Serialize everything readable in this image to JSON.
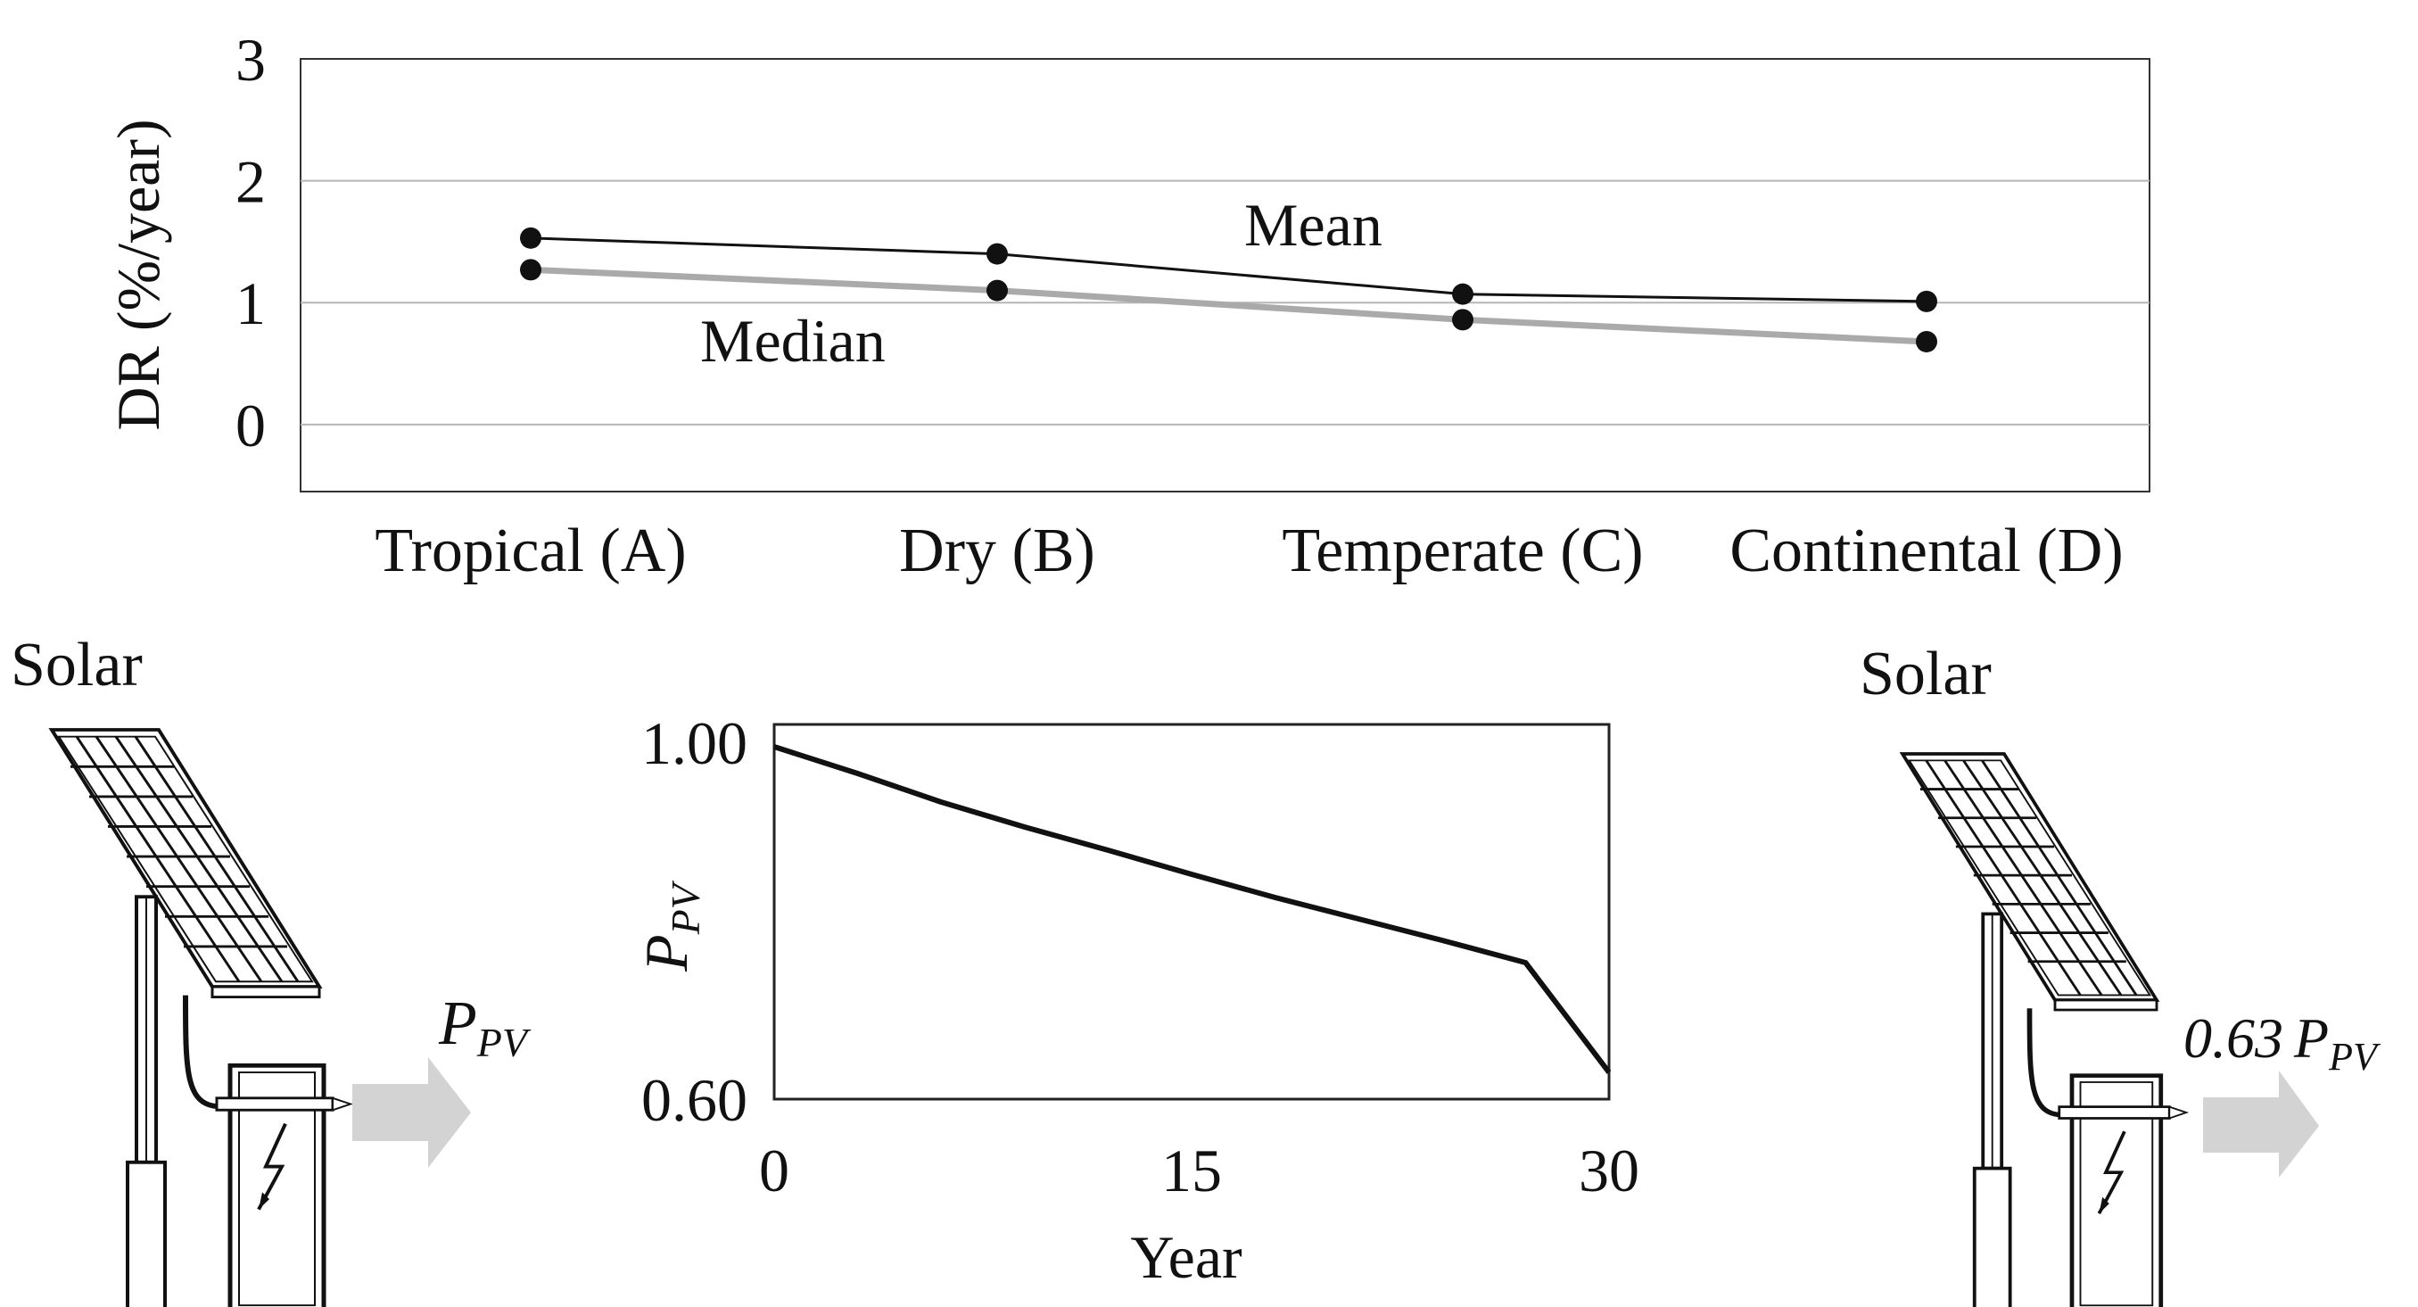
{
  "chart_data": [
    {
      "type": "line",
      "title": "",
      "xlabel": "",
      "ylabel": "DR (%/year)",
      "categories": [
        "Tropical (A)",
        "Dry (B)",
        "Temperate (C)",
        "Continental (D)"
      ],
      "ylim": [
        -0.55,
        3
      ],
      "yticks": [
        0,
        1,
        2,
        3
      ],
      "ytick_labels": [
        "0",
        "1",
        "2",
        "3"
      ],
      "grid": true,
      "series": [
        {
          "name": "Mean",
          "label": "Mean",
          "color": "#111111",
          "values": [
            1.53,
            1.4,
            1.07,
            1.01
          ]
        },
        {
          "name": "Median",
          "label": "Median",
          "color": "#aaaaaa",
          "values": [
            1.27,
            1.1,
            0.86,
            0.68
          ]
        }
      ]
    },
    {
      "type": "line",
      "title": "",
      "xlabel": "Year",
      "ylabel": "P_PV",
      "ylabel_main": "P",
      "ylabel_sub": "PV",
      "xlim": [
        0,
        30
      ],
      "ylim": [
        0.6,
        1.02
      ],
      "xticks": [
        0,
        15,
        30
      ],
      "xtick_labels": [
        "0",
        "15",
        "30"
      ],
      "ytick_labels": [
        "1.00",
        "0.60"
      ],
      "yticks": [
        1.0,
        0.6
      ],
      "series": [
        {
          "name": "P_PV",
          "color": "#111111",
          "x": [
            0,
            3,
            6,
            9,
            12,
            15,
            18,
            21,
            24,
            27,
            30
          ],
          "y": [
            0.995,
            0.965,
            0.933,
            0.905,
            0.879,
            0.852,
            0.826,
            0.802,
            0.778,
            0.753,
            0.63
          ]
        }
      ]
    }
  ],
  "illustration": {
    "left": {
      "title": "Solar",
      "output_main": "P",
      "output_sub": "PV"
    },
    "right": {
      "title": "Solar",
      "output_coef": "0.63",
      "output_main": "P",
      "output_sub": "PV"
    },
    "arrow_color": "#d3d3d3",
    "panel_color": "#222222"
  }
}
